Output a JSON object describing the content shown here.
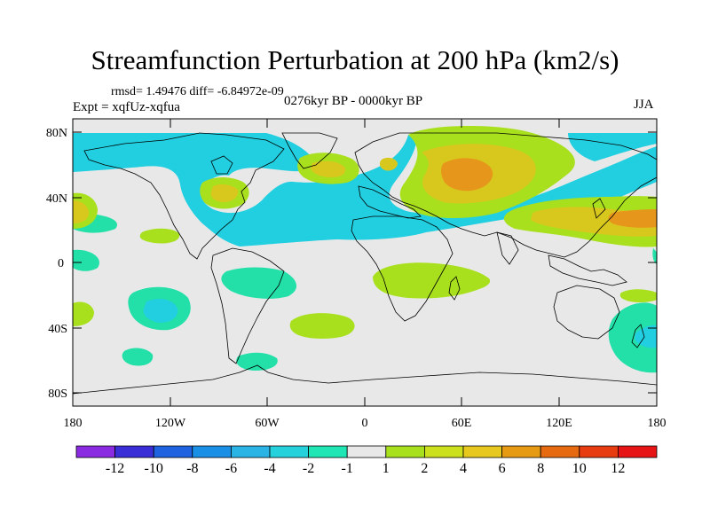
{
  "title": "Streamfunction Perturbation at 200 hPa (km2/s)",
  "stats": "rmsd= 1.49476 diff= -6.84972e-09",
  "experiment": "Expt = xqfUz-xqfua",
  "period": "0276kyr BP - 0000kyr BP",
  "season": "JJA",
  "axes": {
    "lat_labels": [
      "80N",
      "40N",
      "0",
      "40S",
      "80S"
    ],
    "lon_labels": [
      "180",
      "120W",
      "60W",
      "0",
      "60E",
      "120E",
      "180"
    ]
  },
  "colorbar": {
    "labels": [
      "-12",
      "-10",
      "-8",
      "-6",
      "-4",
      "-2",
      "-1",
      "1",
      "2",
      "4",
      "6",
      "8",
      "10",
      "12"
    ],
    "colors": [
      "#8a2be2",
      "#3a2fd6",
      "#1f63e0",
      "#1a8fe6",
      "#2ab4e6",
      "#25d2dc",
      "#1fe6b4",
      "#e8e8e8",
      "#a8e01e",
      "#cde01e",
      "#e6c81e",
      "#e69a14",
      "#e66a10",
      "#e63c10",
      "#e61414"
    ]
  },
  "palette": {
    "neg1": "#22e0a8",
    "neg2": "#22cfe0",
    "pos1": "#a8e01e",
    "pos2": "#d8c81e",
    "pos3": "#e6961a",
    "bg": "#e8e8e8"
  }
}
